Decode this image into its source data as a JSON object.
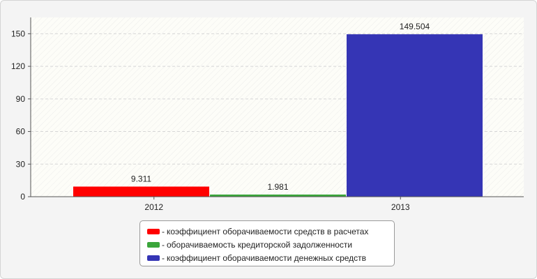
{
  "chart_data": {
    "type": "bar",
    "categories": [
      "2012",
      "2013"
    ],
    "series": [
      {
        "name": "коэффициент оборачиваемости средств в расчетах",
        "color": "#ff0000",
        "values": [
          9.311,
          null
        ]
      },
      {
        "name": "оборачиваемость кредиторской задолженности",
        "color": "#3aa53a",
        "values": [
          1.981,
          null
        ]
      },
      {
        "name": "коэффициент оборачиваемости денежных средств",
        "color": "#3535b5",
        "values": [
          null,
          149.504
        ]
      }
    ],
    "value_labels": [
      "9.311",
      "1.981",
      "149.504"
    ],
    "y_ticks": [
      "0",
      "30",
      "60",
      "90",
      "120",
      "150"
    ],
    "ylim": [
      0,
      165
    ],
    "grid": true,
    "legend_position": "bottom",
    "legend_prefix": "-",
    "plot_background": "#fdfdf8"
  }
}
